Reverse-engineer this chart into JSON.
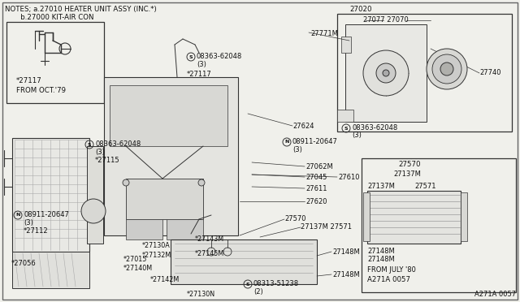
{
  "bg_color": "#f0f0eb",
  "line_color": "#333333",
  "text_color": "#111111",
  "notes_line1": "NOTES; a.27010 HEATER UNIT ASSY (INC.*)",
  "notes_line2": "       b.27000 KIT-AIR CON",
  "diagram_id": "A271A 0057",
  "figsize": [
    6.4,
    3.72
  ],
  "dpi": 100
}
